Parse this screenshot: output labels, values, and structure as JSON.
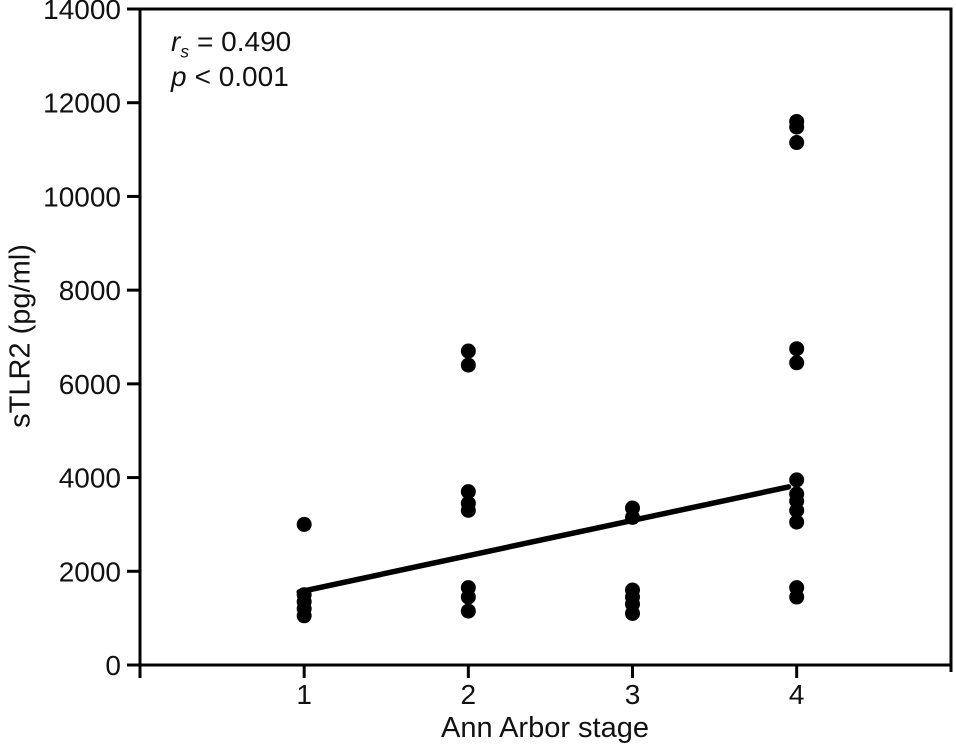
{
  "chart_data": {
    "type": "scatter",
    "title": "",
    "xlabel": "Ann Arbor stage",
    "ylabel": "sTLR2 (pg/ml)",
    "xlim": [
      0,
      4.94
    ],
    "ylim": [
      0,
      14000
    ],
    "xticks": [
      1,
      2,
      3,
      4
    ],
    "yticks": [
      0,
      2000,
      4000,
      6000,
      8000,
      10000,
      12000,
      14000
    ],
    "grid": false,
    "legend": "none",
    "marker_color": "#000000",
    "axis_color": "#000000",
    "annotation": {
      "r_var": "r",
      "r_sub": "s",
      "r_rest": "= 0.490",
      "p_var": "p",
      "p_rest": "< 0.001"
    },
    "trendline": {
      "x": [
        0.97,
        3.95
      ],
      "y": [
        1560,
        3800
      ]
    },
    "points": [
      {
        "x": 1,
        "y": 3000
      },
      {
        "x": 1,
        "y": 1500
      },
      {
        "x": 1,
        "y": 1350
      },
      {
        "x": 1,
        "y": 1200
      },
      {
        "x": 1,
        "y": 1050
      },
      {
        "x": 2,
        "y": 6700
      },
      {
        "x": 2,
        "y": 6400
      },
      {
        "x": 2,
        "y": 3700
      },
      {
        "x": 2,
        "y": 3450
      },
      {
        "x": 2,
        "y": 3300
      },
      {
        "x": 2,
        "y": 1650
      },
      {
        "x": 2,
        "y": 1450
      },
      {
        "x": 2,
        "y": 1150
      },
      {
        "x": 3,
        "y": 3350
      },
      {
        "x": 3,
        "y": 3150
      },
      {
        "x": 3,
        "y": 1600
      },
      {
        "x": 3,
        "y": 1450
      },
      {
        "x": 3,
        "y": 1300
      },
      {
        "x": 3,
        "y": 1100
      },
      {
        "x": 4,
        "y": 11600
      },
      {
        "x": 4,
        "y": 11480
      },
      {
        "x": 4,
        "y": 11150
      },
      {
        "x": 4,
        "y": 6750
      },
      {
        "x": 4,
        "y": 6450
      },
      {
        "x": 4,
        "y": 3950
      },
      {
        "x": 4,
        "y": 3650
      },
      {
        "x": 4,
        "y": 3500
      },
      {
        "x": 4,
        "y": 3300
      },
      {
        "x": 4,
        "y": 3050
      },
      {
        "x": 4,
        "y": 1650
      },
      {
        "x": 4,
        "y": 1450
      }
    ]
  }
}
